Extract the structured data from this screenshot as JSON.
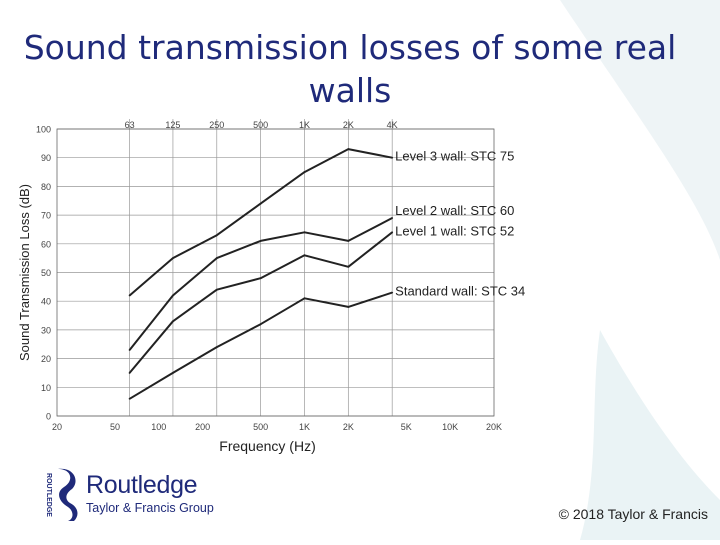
{
  "slide": {
    "title": "Sound transmission losses of some real walls",
    "copyright": "© 2018 Taylor & Francis"
  },
  "logo": {
    "name": "Routledge",
    "sub": "Taylor & Francis Group",
    "vertical": "ROUTLEDGE"
  },
  "colors": {
    "title": "#1f2a7a",
    "line": "#222222",
    "grid": "#888888"
  },
  "chart_data": {
    "type": "line",
    "xlabel": "Frequency (Hz)",
    "ylabel": "Sound Transmission Loss (dB)",
    "xscale": "log",
    "xlim": [
      20,
      20000
    ],
    "ylim": [
      0,
      100
    ],
    "grid": true,
    "x_ticks": [
      20,
      50,
      100,
      200,
      500,
      1000,
      2000,
      5000,
      10000,
      20000
    ],
    "x_tick_labels": [
      "20",
      "50",
      "100",
      "200",
      "500",
      "1K",
      "2K",
      "5K",
      "10K",
      "20K"
    ],
    "top_ticks": [
      63,
      125,
      250,
      500,
      1000,
      2000,
      4000
    ],
    "top_tick_labels": [
      "63",
      "125",
      "250",
      "500",
      "1K",
      "2K",
      "4K"
    ],
    "y_ticks": [
      0,
      10,
      20,
      30,
      40,
      50,
      60,
      70,
      80,
      90,
      100
    ],
    "y_tick_labels": [
      "0",
      "10",
      "20",
      "30",
      "40",
      "50",
      "60",
      "70",
      "80",
      "90",
      "100"
    ],
    "series": [
      {
        "name": "Level 3 wall: STC 75",
        "x": [
          63,
          125,
          250,
          500,
          1000,
          2000,
          4000
        ],
        "y": [
          42,
          55,
          63,
          74,
          85,
          93,
          90
        ]
      },
      {
        "name": "Level 2 wall: STC 60",
        "x": [
          63,
          125,
          250,
          500,
          1000,
          2000,
          4000
        ],
        "y": [
          23,
          42,
          55,
          61,
          64,
          61,
          69
        ]
      },
      {
        "name": "Level 1 wall: STC 52",
        "x": [
          63,
          125,
          250,
          500,
          1000,
          2000,
          4000
        ],
        "y": [
          15,
          33,
          44,
          48,
          56,
          52,
          64
        ]
      },
      {
        "name": "Standard wall: STC 34",
        "x": [
          63,
          125,
          250,
          500,
          1000,
          2000,
          4000
        ],
        "y": [
          6,
          15,
          24,
          32,
          41,
          38,
          43
        ]
      }
    ]
  }
}
